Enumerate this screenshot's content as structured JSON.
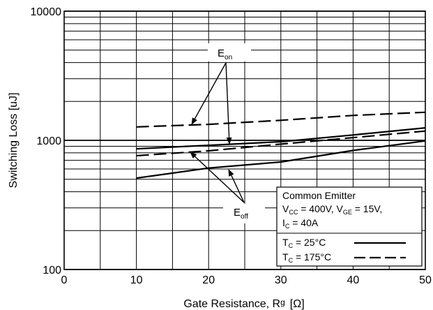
{
  "chart_data": {
    "type": "line",
    "xlabel_main": "Gate Resistance, R",
    "xlabel_sub": "g",
    "xlabel_unit": "[Ω]",
    "ylabel": "Switching Loss [uJ]",
    "xlim": [
      0,
      50
    ],
    "ylim": [
      100,
      10000
    ],
    "yscale": "log",
    "grid": true,
    "x_ticks": [
      0,
      10,
      20,
      30,
      40,
      50
    ],
    "x_tick_labels": [
      "0",
      "10",
      "20",
      "30",
      "40",
      "50"
    ],
    "y_tick_values": [
      100,
      1000,
      10000
    ],
    "y_tick_labels": [
      "100",
      "1000",
      "10000"
    ],
    "series": [
      {
        "name": "Eon, Tc = 25°C",
        "style": "solid",
        "x": [
          10,
          20,
          30,
          40,
          50
        ],
        "y": [
          860,
          915,
          975,
          1100,
          1250
        ]
      },
      {
        "name": "Eon, Tc = 175°C",
        "style": "dashed",
        "x": [
          10,
          20,
          30,
          40,
          50
        ],
        "y": [
          1270,
          1330,
          1430,
          1560,
          1650
        ]
      },
      {
        "name": "Eoff, Tc = 25°C",
        "style": "solid",
        "x": [
          10,
          20,
          30,
          40,
          50
        ],
        "y": [
          510,
          610,
          680,
          835,
          990
        ]
      },
      {
        "name": "Eoff, Tc = 175°C",
        "style": "dashed",
        "x": [
          10,
          20,
          30,
          40,
          50
        ],
        "y": [
          760,
          830,
          935,
          1050,
          1180
        ]
      }
    ],
    "annotations": {
      "eon": {
        "main": "E",
        "sub": "on"
      },
      "eoff": {
        "main": "E",
        "sub": "off"
      }
    },
    "legend": {
      "title": "Common Emitter",
      "line2_a": "V",
      "line2_a_sub": "CC",
      "line2_b": " = 400V, V",
      "line2_b_sub": "GE",
      "line2_c": " = 15V,",
      "line3_a": "I",
      "line3_a_sub": "C",
      "line3_b": " = 40A",
      "entry1_a": "T",
      "entry1_a_sub": "C",
      "entry1_b": " = 25°C",
      "entry2_a": "T",
      "entry2_a_sub": "C",
      "entry2_b": " = 175°C"
    }
  }
}
